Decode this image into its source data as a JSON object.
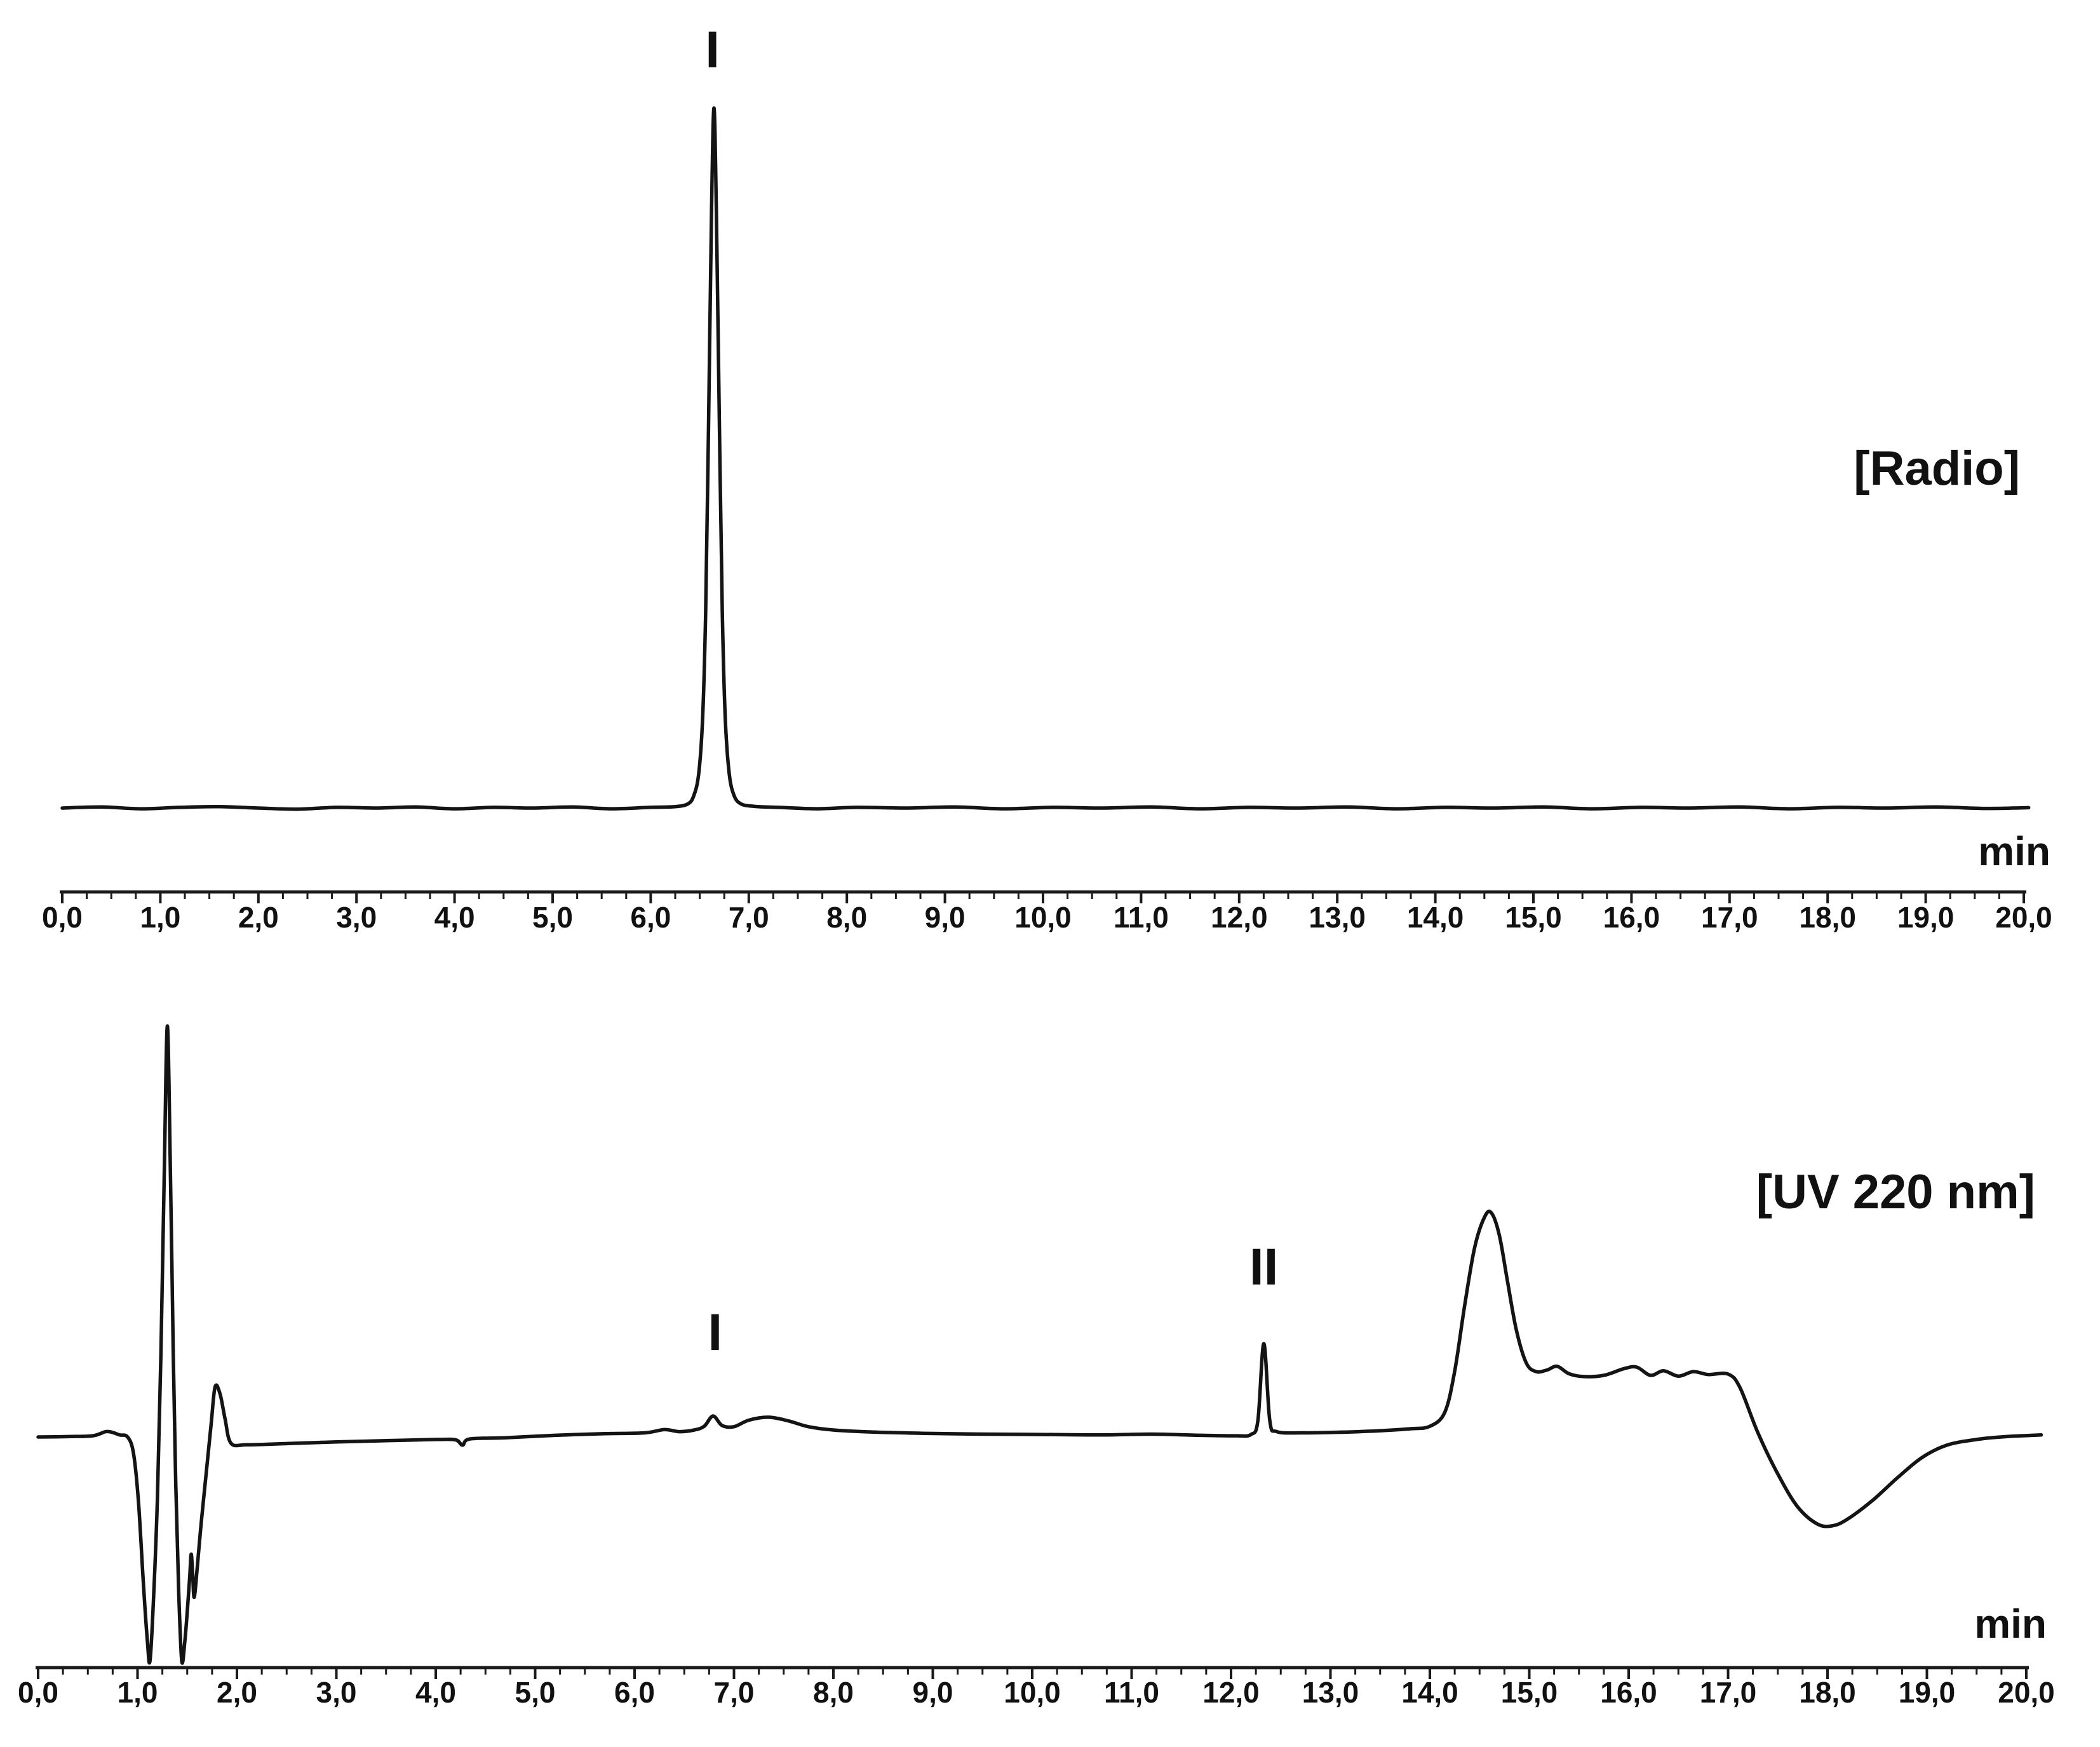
{
  "figure": {
    "background_color": "#ffffff",
    "trace_color": "#141414",
    "text_color": "#111111",
    "description": "Two stacked HPLC chromatograms sharing a 0-20 min time axis"
  },
  "chart_data": [
    {
      "id": "radio",
      "type": "line",
      "title": "[Radio]",
      "xlabel": "min",
      "ylabel": "",
      "y_units": "relative intensity % (no y-axis drawn)",
      "xlim": [
        0,
        20
      ],
      "x_tick_step": 1.0,
      "x_minor_ticks_per_interval": 3,
      "grid": false,
      "legend": "none",
      "x_tick_labels": [
        "0,0",
        "1,0",
        "2,0",
        "3,0",
        "4,0",
        "5,0",
        "6,0",
        "7,0",
        "8,0",
        "9,0",
        "10,0",
        "11,0",
        "12,0",
        "13,0",
        "14,0",
        "15,0",
        "16,0",
        "17,0",
        "18,0",
        "19,0",
        "20,0"
      ],
      "annotations": [
        {
          "label": "I",
          "t": 6.63
        }
      ],
      "series": [
        {
          "name": "radioactivity trace",
          "points": [
            [
              0,
              0
            ],
            [
              0.4,
              0.15
            ],
            [
              0.8,
              -0.1
            ],
            [
              1.2,
              0.1
            ],
            [
              1.6,
              0.2
            ],
            [
              2.0,
              0
            ],
            [
              2.4,
              -0.15
            ],
            [
              2.8,
              0.1
            ],
            [
              3.2,
              0
            ],
            [
              3.6,
              0.15
            ],
            [
              4.0,
              -0.1
            ],
            [
              4.4,
              0.1
            ],
            [
              4.8,
              0
            ],
            [
              5.2,
              0.15
            ],
            [
              5.6,
              -0.1
            ],
            [
              6.0,
              0.1
            ],
            [
              6.25,
              0.2
            ],
            [
              6.38,
              0.6
            ],
            [
              6.44,
              1.8
            ],
            [
              6.49,
              5
            ],
            [
              6.53,
              13
            ],
            [
              6.56,
              28
            ],
            [
              6.59,
              55
            ],
            [
              6.62,
              85
            ],
            [
              6.645,
              100
            ],
            [
              6.67,
              85
            ],
            [
              6.7,
              55
            ],
            [
              6.73,
              28
            ],
            [
              6.76,
              13
            ],
            [
              6.8,
              5
            ],
            [
              6.85,
              1.8
            ],
            [
              6.92,
              0.6
            ],
            [
              7.05,
              0.25
            ],
            [
              7.3,
              0.1
            ],
            [
              7.7,
              -0.1
            ],
            [
              8.1,
              0.1
            ],
            [
              8.6,
              0
            ],
            [
              9.1,
              0.15
            ],
            [
              9.6,
              -0.1
            ],
            [
              10.1,
              0.1
            ],
            [
              10.6,
              0
            ],
            [
              11.1,
              0.15
            ],
            [
              11.6,
              -0.1
            ],
            [
              12.1,
              0.1
            ],
            [
              12.6,
              0
            ],
            [
              13.1,
              0.15
            ],
            [
              13.6,
              -0.1
            ],
            [
              14.1,
              0.1
            ],
            [
              14.6,
              0
            ],
            [
              15.1,
              0.15
            ],
            [
              15.6,
              -0.1
            ],
            [
              16.1,
              0.1
            ],
            [
              16.6,
              0
            ],
            [
              17.1,
              0.15
            ],
            [
              17.6,
              -0.1
            ],
            [
              18.1,
              0.1
            ],
            [
              18.6,
              0
            ],
            [
              19.1,
              0.15
            ],
            [
              19.6,
              -0.05
            ],
            [
              20.05,
              0.05
            ]
          ]
        }
      ]
    },
    {
      "id": "uv",
      "type": "line",
      "title": "[UV 220 nm]",
      "xlabel": "min",
      "ylabel": "",
      "y_units": "relative absorbance % of solvent-front peak (no y-axis drawn)",
      "xlim": [
        0,
        20
      ],
      "x_tick_step": 1.0,
      "x_minor_ticks_per_interval": 3,
      "grid": false,
      "legend": "none",
      "x_tick_labels": [
        "0,0",
        "1,0",
        "2,0",
        "3,0",
        "4,0",
        "5,0",
        "6,0",
        "7,0",
        "8,0",
        "9,0",
        "10,0",
        "11,0",
        "12,0",
        "13,0",
        "14,0",
        "15,0",
        "16,0",
        "17,0",
        "18,0",
        "19,0",
        "20,0"
      ],
      "annotations": [
        {
          "label": "I",
          "t": 6.81
        },
        {
          "label": "II",
          "t": 12.33
        }
      ],
      "series": [
        {
          "name": "UV 220 nm trace",
          "points": [
            [
              0,
              0
            ],
            [
              0.3,
              0.1
            ],
            [
              0.55,
              0.3
            ],
            [
              0.68,
              1.3
            ],
            [
              0.75,
              1.1
            ],
            [
              0.82,
              0.5
            ],
            [
              0.9,
              0
            ],
            [
              0.96,
              -4
            ],
            [
              1.01,
              -16
            ],
            [
              1.06,
              -36
            ],
            [
              1.1,
              -50
            ],
            [
              1.125,
              -54.5
            ],
            [
              1.16,
              -40
            ],
            [
              1.2,
              -15
            ],
            [
              1.235,
              20
            ],
            [
              1.27,
              66
            ],
            [
              1.3,
              100
            ],
            [
              1.33,
              66
            ],
            [
              1.36,
              20
            ],
            [
              1.385,
              -12
            ],
            [
              1.415,
              -38
            ],
            [
              1.445,
              -54.5
            ],
            [
              1.475,
              -50
            ],
            [
              1.505,
              -41
            ],
            [
              1.525,
              -34
            ],
            [
              1.54,
              -28.5
            ],
            [
              1.555,
              -33.5
            ],
            [
              1.57,
              -39
            ],
            [
              1.6,
              -32
            ],
            [
              1.64,
              -21
            ],
            [
              1.69,
              -9
            ],
            [
              1.74,
              3
            ],
            [
              1.78,
              12.2
            ],
            [
              1.83,
              10.5
            ],
            [
              1.88,
              4.5
            ],
            [
              1.94,
              -1.5
            ],
            [
              2.1,
              -1.9
            ],
            [
              2.5,
              -1.6
            ],
            [
              3.0,
              -1.2
            ],
            [
              3.5,
              -0.9
            ],
            [
              4.0,
              -0.6
            ],
            [
              4.2,
              -0.7
            ],
            [
              4.27,
              -2.0
            ],
            [
              4.34,
              -0.5
            ],
            [
              4.7,
              -0.2
            ],
            [
              5.2,
              0.4
            ],
            [
              5.7,
              0.8
            ],
            [
              6.1,
              1.0
            ],
            [
              6.3,
              1.8
            ],
            [
              6.45,
              1.3
            ],
            [
              6.6,
              1.7
            ],
            [
              6.7,
              2.6
            ],
            [
              6.79,
              5.1
            ],
            [
              6.88,
              2.8
            ],
            [
              7.0,
              2.5
            ],
            [
              7.15,
              4.1
            ],
            [
              7.35,
              4.8
            ],
            [
              7.55,
              3.9
            ],
            [
              7.75,
              2.5
            ],
            [
              8.0,
              1.7
            ],
            [
              8.4,
              1.2
            ],
            [
              8.9,
              0.9
            ],
            [
              9.5,
              0.7
            ],
            [
              10.1,
              0.6
            ],
            [
              10.7,
              0.5
            ],
            [
              11.2,
              0.7
            ],
            [
              11.7,
              0.4
            ],
            [
              12.05,
              0.3
            ],
            [
              12.2,
              0.6
            ],
            [
              12.27,
              4
            ],
            [
              12.33,
              22.7
            ],
            [
              12.39,
              4
            ],
            [
              12.46,
              1.3
            ],
            [
              12.7,
              1.0
            ],
            [
              13.0,
              1.1
            ],
            [
              13.4,
              1.4
            ],
            [
              13.8,
              2.0
            ],
            [
              14.0,
              2.6
            ],
            [
              14.15,
              6
            ],
            [
              14.25,
              16
            ],
            [
              14.35,
              32
            ],
            [
              14.45,
              46
            ],
            [
              14.55,
              53.5
            ],
            [
              14.62,
              54.5
            ],
            [
              14.7,
              49
            ],
            [
              14.78,
              38
            ],
            [
              14.87,
              26
            ],
            [
              14.97,
              18
            ],
            [
              15.07,
              15.9
            ],
            [
              15.18,
              16.3
            ],
            [
              15.28,
              17.2
            ],
            [
              15.4,
              15.4
            ],
            [
              15.55,
              14.7
            ],
            [
              15.75,
              15.0
            ],
            [
              15.95,
              16.6
            ],
            [
              16.08,
              17.0
            ],
            [
              16.22,
              15.0
            ],
            [
              16.35,
              16.1
            ],
            [
              16.5,
              14.8
            ],
            [
              16.65,
              15.9
            ],
            [
              16.8,
              15.2
            ],
            [
              17.0,
              15.3
            ],
            [
              17.12,
              12
            ],
            [
              17.3,
              1
            ],
            [
              17.5,
              -9
            ],
            [
              17.7,
              -17
            ],
            [
              17.9,
              -21.2
            ],
            [
              18.05,
              -21.6
            ],
            [
              18.2,
              -20
            ],
            [
              18.45,
              -15.5
            ],
            [
              18.7,
              -10
            ],
            [
              18.95,
              -5
            ],
            [
              19.2,
              -2
            ],
            [
              19.5,
              -0.6
            ],
            [
              19.8,
              0.1
            ],
            [
              20.15,
              0.5
            ]
          ]
        }
      ]
    }
  ]
}
